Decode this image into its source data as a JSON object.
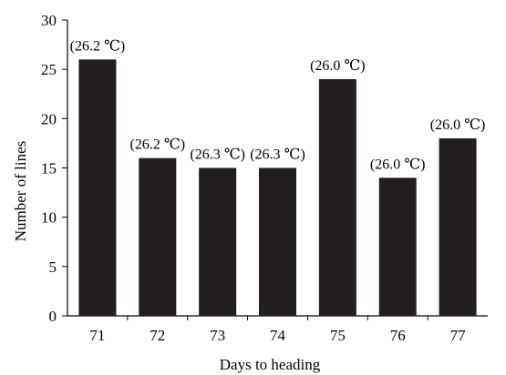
{
  "chart_data": {
    "type": "bar",
    "title": "",
    "xlabel": "Days to heading",
    "ylabel": "Number of lines",
    "categories": [
      "71",
      "72",
      "73",
      "74",
      "75",
      "76",
      "77"
    ],
    "values": [
      26,
      16,
      15,
      15,
      24,
      14,
      18
    ],
    "data_labels": [
      "(26.2 ℃)",
      "(26.2 ℃)",
      "(26.3 ℃)",
      "(26.3 ℃)",
      "(26.0 ℃)",
      "(26.0 ℃)",
      "(26.0 ℃)"
    ],
    "ylim": [
      0,
      30
    ],
    "yticks": [
      0,
      5,
      10,
      15,
      20,
      25,
      30
    ],
    "grid": false,
    "legend": "none",
    "bar_color": "#231f20"
  }
}
